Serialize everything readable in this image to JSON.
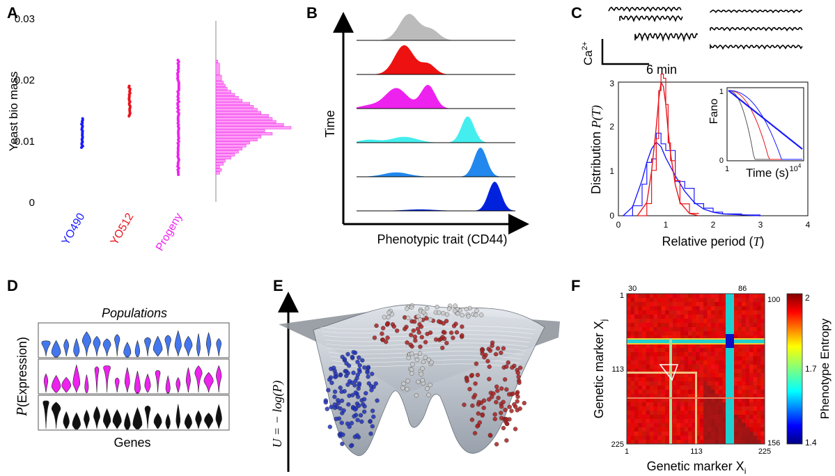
{
  "panels": {
    "a": {
      "label": "A"
    },
    "b": {
      "label": "B"
    },
    "c": {
      "label": "C"
    },
    "d": {
      "label": "D"
    },
    "e": {
      "label": "E"
    },
    "f": {
      "label": "F"
    }
  },
  "chart_data": [
    {
      "panel": "A",
      "type": "scatter",
      "ylabel": "Yeast bio mass",
      "ylim": [
        0,
        0.03
      ],
      "yticks": [
        "0",
        "0.01",
        "0.02",
        "0.03"
      ],
      "categories": [
        "YO490",
        "YO512",
        "Progeny"
      ],
      "category_colors": [
        "#1a1aff",
        "#e8141c",
        "#ee22ee"
      ],
      "series": [
        {
          "name": "YO490",
          "range": [
            0.009,
            0.0138
          ]
        },
        {
          "name": "YO512",
          "range": [
            0.0142,
            0.0192
          ]
        },
        {
          "name": "Progeny",
          "range": [
            0.0045,
            0.0235
          ]
        }
      ],
      "histogram": {
        "bins": [
          0.0045,
          0.005,
          0.0055,
          0.006,
          0.0065,
          0.007,
          0.0075,
          0.008,
          0.0085,
          0.009,
          0.0095,
          0.01,
          0.0105,
          0.011,
          0.0115,
          0.012,
          0.0125,
          0.013,
          0.0135,
          0.014,
          0.0145,
          0.015,
          0.0155,
          0.016,
          0.0165,
          0.017,
          0.0175,
          0.018,
          0.0185,
          0.019,
          0.0195,
          0.02,
          0.021,
          0.023
        ],
        "counts": [
          2,
          3,
          2,
          4,
          5,
          8,
          10,
          12,
          14,
          16,
          18,
          22,
          24,
          30,
          26,
          40,
          36,
          32,
          30,
          28,
          24,
          22,
          20,
          18,
          14,
          12,
          10,
          8,
          6,
          5,
          4,
          3,
          2,
          1
        ]
      }
    },
    {
      "panel": "B",
      "type": "area",
      "xlabel": "Phenotypic trait (CD44)",
      "ylabel": "Time",
      "series": [
        {
          "color": "#bbbbbb",
          "peaks": [
            [
              0.33,
              0.9,
              0.06
            ],
            [
              0.47,
              0.35,
              0.05
            ]
          ]
        },
        {
          "color": "#ee1111",
          "peaks": [
            [
              0.3,
              1.0,
              0.06
            ],
            [
              0.45,
              0.35,
              0.045
            ]
          ]
        },
        {
          "color": "#ee22ee",
          "peaks": [
            [
              0.25,
              0.7,
              0.07
            ],
            [
              0.45,
              0.8,
              0.045
            ],
            [
              0.08,
              0.1,
              0.06
            ]
          ]
        },
        {
          "color": "#44eeee",
          "peaks": [
            [
              0.7,
              0.9,
              0.04
            ],
            [
              0.3,
              0.2,
              0.08
            ],
            [
              0.08,
              0.1,
              0.06
            ]
          ]
        },
        {
          "color": "#2288ee",
          "peaks": [
            [
              0.78,
              1.0,
              0.04
            ],
            [
              0.25,
              0.15,
              0.08
            ]
          ]
        },
        {
          "color": "#0022dd",
          "peaks": [
            [
              0.87,
              1.0,
              0.04
            ],
            [
              0.4,
              0.05,
              0.1
            ]
          ]
        }
      ]
    },
    {
      "panel": "C",
      "type": "line",
      "scale_labels": {
        "ca": "Ca",
        "ca_sup": "2+",
        "time": "6 min"
      },
      "main": {
        "xlabel_prefix": "Relative period (",
        "xlabel_var": "T",
        "xlabel_suffix": ")",
        "ylabel_prefix": "Distribution ",
        "ylabel_var": "P(T)",
        "xlim": [
          0,
          4
        ],
        "ylim": [
          0,
          3
        ],
        "xticks": [
          "0",
          "1",
          "2",
          "3",
          "4"
        ],
        "yticks": [
          "0",
          "1",
          "2",
          "3"
        ],
        "series": [
          {
            "color": "#1a1aff",
            "x": [
              0.1,
              0.3,
              0.5,
              0.6,
              0.7,
              0.8,
              0.9,
              1.0,
              1.2,
              1.4,
              1.6,
              1.8,
              2.0,
              2.2,
              2.6,
              3.0
            ],
            "y": [
              0.0,
              0.2,
              0.8,
              1.2,
              1.5,
              1.65,
              1.55,
              1.3,
              0.9,
              0.55,
              0.3,
              0.15,
              0.08,
              0.04,
              0.02,
              0.0
            ]
          },
          {
            "color": "#e8141c",
            "x": [
              0.4,
              0.6,
              0.7,
              0.8,
              0.85,
              0.9,
              0.95,
              1.0,
              1.05,
              1.1,
              1.2,
              1.3,
              1.5,
              1.7
            ],
            "y": [
              0.0,
              0.3,
              1.0,
              2.0,
              2.6,
              3.0,
              2.9,
              2.5,
              1.9,
              1.4,
              0.7,
              0.3,
              0.05,
              0.0
            ]
          }
        ]
      },
      "inset": {
        "xlabel": "Time (s)",
        "ylabel": "Fano",
        "xticks": [
          "1",
          "10"
        ],
        "xtick_sup": "4",
        "yticks": [
          "0",
          "1"
        ]
      }
    },
    {
      "panel": "D",
      "type": "violin",
      "title": "Populations",
      "xlabel": "Genes",
      "ylabel_var": "P",
      "ylabel_rest": "(Expression)",
      "rows": [
        {
          "color": "#4477ee"
        },
        {
          "color": "#ee22ee"
        },
        {
          "color": "#111111"
        }
      ],
      "genes": 18
    },
    {
      "panel": "E",
      "type": "surface",
      "ylabel": "U = − log(P)",
      "point_colors": [
        "#2233bb",
        "#aa2222",
        "#cccccc"
      ]
    },
    {
      "panel": "F",
      "type": "heatmap",
      "xlabel_main": "Genetic marker X",
      "xlabel_sub": "i",
      "ylabel_main": "Genetic marker X",
      "ylabel_sub": "j",
      "xticks": [
        "1",
        "113",
        "225"
      ],
      "yticks": [
        "1",
        "113",
        "225"
      ],
      "top_ticks": [
        "30",
        "86"
      ],
      "right_ticks": [
        "100",
        "156"
      ],
      "colorbar": {
        "label": "Phenotype Entropy",
        "ticks": [
          "2",
          "1.7",
          "1.4"
        ],
        "range": [
          1.4,
          2
        ]
      }
    }
  ]
}
